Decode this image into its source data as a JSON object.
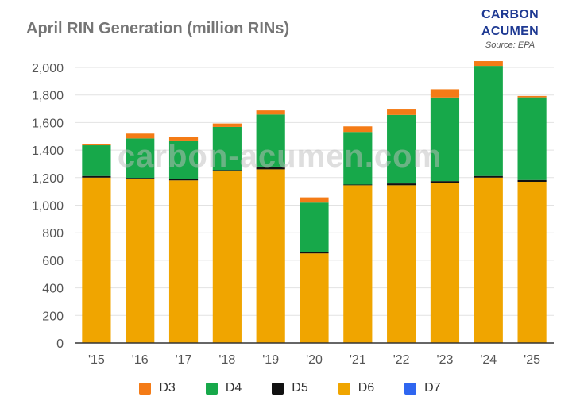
{
  "brand": {
    "line1": "CARBON",
    "line2": "ACUMEN",
    "source": "Source: EPA"
  },
  "watermark": "carbon-acumen.com",
  "colors": {
    "D3": "#f47b16",
    "D4": "#17a84a",
    "D5": "#111111",
    "D6": "#f0a500",
    "D7": "#2f66f0",
    "axis": "#333333",
    "grid": "#e2e2e2",
    "brand": "#1f3a93"
  },
  "chart_data": {
    "type": "bar",
    "stacked": true,
    "title": "April RIN Generation (million RINs)",
    "xlabel": "",
    "ylabel": "",
    "ylim": [
      0,
      2000
    ],
    "yticks": [
      0,
      200,
      400,
      600,
      800,
      1000,
      1200,
      1400,
      1600,
      1800,
      2000
    ],
    "ytick_labels": [
      "0",
      "200",
      "400",
      "600",
      "800",
      "1,000",
      "1,200",
      "1,400",
      "1,600",
      "1,800",
      "2,000"
    ],
    "grid": true,
    "legend_position": "bottom",
    "categories": [
      "'15",
      "'16",
      "'17",
      "'18",
      "'19",
      "'20",
      "'21",
      "'22",
      "'23",
      "'24",
      "'25"
    ],
    "series": [
      {
        "name": "D6",
        "values": [
          1200,
          1190,
          1180,
          1250,
          1260,
          650,
          1145,
          1145,
          1160,
          1200,
          1170
        ]
      },
      {
        "name": "D5",
        "values": [
          12,
          8,
          8,
          5,
          20,
          8,
          5,
          13,
          15,
          12,
          13
        ]
      },
      {
        "name": "D4",
        "values": [
          223,
          287,
          282,
          313,
          378,
          361,
          382,
          497,
          607,
          799,
          600
        ]
      },
      {
        "name": "D7",
        "values": [
          0,
          0,
          0,
          0,
          0,
          0,
          0,
          0,
          0,
          0,
          0
        ]
      },
      {
        "name": "D3",
        "values": [
          8,
          35,
          25,
          25,
          30,
          38,
          40,
          45,
          60,
          35,
          10
        ]
      }
    ],
    "legend": [
      "D3",
      "D4",
      "D5",
      "D6",
      "D7"
    ]
  }
}
